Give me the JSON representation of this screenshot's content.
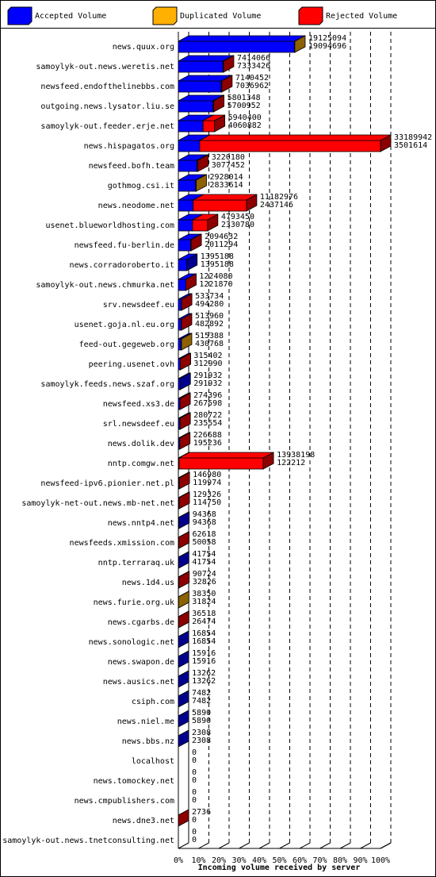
{
  "chart_data": {
    "type": "bar3d-stacked-horizontal",
    "x_label": "Incoming volume received by server",
    "categories": [
      "news.quux.org",
      "samoylyk-out.news.weretis.net",
      "newsfeed.endofthelinebbs.com",
      "outgoing.news.lysator.liu.se",
      "samoylyk-out.feeder.erje.net",
      "news.hispagatos.org",
      "newsfeed.bofh.team",
      "gothmog.csi.it",
      "news.neodome.net",
      "usenet.blueworldhosting.com",
      "newsfeed.fu-berlin.de",
      "news.corradoroberto.it",
      "samoylyk-out.news.chmurka.net",
      "srv.newsdeef.eu",
      "usenet.goja.nl.eu.org",
      "feed-out.gegeweb.org",
      "peering.usenet.ovh",
      "samoylyk.feeds.news.szaf.org",
      "newsfeed.xs3.de",
      "srl.newsdeef.eu",
      "news.dolik.dev",
      "nntp.comgw.net",
      "newsfeed-ipv6.pionier.net.pl",
      "samoylyk-net-out.news.mb-net.net",
      "news.nntp4.net",
      "newsfeeds.xmission.com",
      "nntp.terraraq.uk",
      "news.1d4.us",
      "news.furie.org.uk",
      "news.cgarbs.de",
      "news.sonologic.net",
      "news.swapon.de",
      "news.ausics.net",
      "csiph.com",
      "news.niel.me",
      "news.bbs.nz",
      "localhost",
      "news.tomockey.net",
      "news.cmpublishers.com",
      "news.dne3.net",
      "samoylyk-out.news.tnetconsulting.net"
    ],
    "totals": [
      19125094,
      7414066,
      7140452,
      5801348,
      5940400,
      33189942,
      3220180,
      2928014,
      11182976,
      4793450,
      2094632,
      1395188,
      1224080,
      533734,
      513960,
      515388,
      315402,
      291932,
      274396,
      280722,
      226688,
      13938198,
      146980,
      129326,
      94368,
      62618,
      41754,
      90724,
      38350,
      36518,
      16854,
      15916,
      13262,
      7482,
      5890,
      2308,
      0,
      0,
      0,
      2736,
      0
    ],
    "series": [
      {
        "name": "Accepted Volume",
        "color": "#0000ff",
        "values": [
          19094696,
          7333426,
          7036962,
          5700952,
          4060882,
          3501614,
          3077452,
          2833614,
          2437146,
          2330780,
          2011294,
          1395188,
          1221870,
          494280,
          482892,
          430768,
          312990,
          291932,
          267598,
          235554,
          195236,
          122212,
          119974,
          114750,
          94368,
          50058,
          41754,
          32826,
          31824,
          26474,
          16854,
          15916,
          13262,
          7482,
          5890,
          2308,
          0,
          0,
          0,
          0,
          0
        ]
      },
      {
        "name": "Duplicated Volume",
        "color": "#ffb000",
        "values": [
          30398,
          0,
          0,
          0,
          0,
          0,
          0,
          94400,
          0,
          0,
          0,
          0,
          0,
          0,
          0,
          84620,
          0,
          0,
          0,
          0,
          0,
          0,
          0,
          0,
          0,
          0,
          0,
          0,
          6526,
          0,
          0,
          0,
          0,
          0,
          0,
          0,
          0,
          0,
          0,
          0,
          0
        ]
      },
      {
        "name": "Rejected Volume",
        "color": "#ff0000",
        "values": [
          0,
          80640,
          103490,
          100396,
          1879518,
          29688328,
          142728,
          0,
          8745830,
          2462670,
          83338,
          0,
          2210,
          39454,
          31068,
          0,
          2412,
          0,
          6798,
          45168,
          31452,
          13815986,
          27006,
          14576,
          0,
          12560,
          0,
          57898,
          0,
          10044,
          0,
          0,
          0,
          0,
          0,
          0,
          0,
          0,
          0,
          2736,
          0
        ]
      }
    ],
    "xlim": [
      0,
      33189942
    ],
    "xticks": [
      {
        "value": 0,
        "label": "0%"
      },
      {
        "value": 3318994.2,
        "label": "10%"
      },
      {
        "value": 6637988.4,
        "label": "20%"
      },
      {
        "value": 9956982.6,
        "label": "30%"
      },
      {
        "value": 13275976.8,
        "label": "40%"
      },
      {
        "value": 16594971,
        "label": "50%"
      },
      {
        "value": 19913965.2,
        "label": "60%"
      },
      {
        "value": 23232959.4,
        "label": "70%"
      },
      {
        "value": 26551953.6,
        "label": "80%"
      },
      {
        "value": 29870947.8,
        "label": "90%"
      },
      {
        "value": 33189942,
        "label": "100%"
      }
    ],
    "grid": true
  }
}
